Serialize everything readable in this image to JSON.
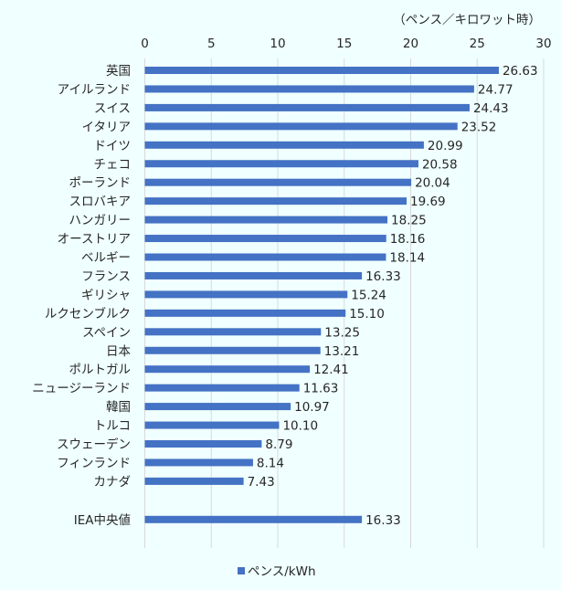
{
  "chart_data": {
    "type": "bar",
    "orientation": "horizontal",
    "unit_label": "（ペンス／キロワット時）",
    "categories": [
      "英国",
      "アイルランド",
      "スイス",
      "イタリア",
      "ドイツ",
      "チェコ",
      "ポーランド",
      "スロバキア",
      "ハンガリー",
      "オーストリア",
      "ベルギー",
      "フランス",
      "ギリシャ",
      "ルクセンブルク",
      "スペイン",
      "日本",
      "ポルトガル",
      "ニュージーランド",
      "韓国",
      "トルコ",
      "スウェーデン",
      "フィンランド",
      "カナダ",
      "",
      "IEA中央値"
    ],
    "values": [
      26.63,
      24.77,
      24.43,
      23.52,
      20.99,
      20.58,
      20.04,
      19.69,
      18.25,
      18.16,
      18.14,
      16.33,
      15.24,
      15.1,
      13.25,
      13.21,
      12.41,
      11.63,
      10.97,
      10.1,
      8.79,
      8.14,
      7.43,
      null,
      16.33
    ],
    "value_labels": [
      "26.63",
      "24.77",
      "24.43",
      "23.52",
      "20.99",
      "20.58",
      "20.04",
      "19.69",
      "18.25",
      "18.16",
      "18.14",
      "16.33",
      "15.24",
      "15.10",
      "13.25",
      "13.21",
      "12.41",
      "11.63",
      "10.97",
      "10.10",
      "8.79",
      "8.14",
      "7.43",
      "",
      "16.33"
    ],
    "xlim": [
      0,
      30
    ],
    "xticks": [
      "0",
      "5",
      "10",
      "15",
      "20",
      "25",
      "30"
    ],
    "x_axis_position": "top",
    "grid": true,
    "series": [
      {
        "name": "ペンス/kWh",
        "color": "#4472c4"
      }
    ],
    "legend_position": "bottom"
  }
}
